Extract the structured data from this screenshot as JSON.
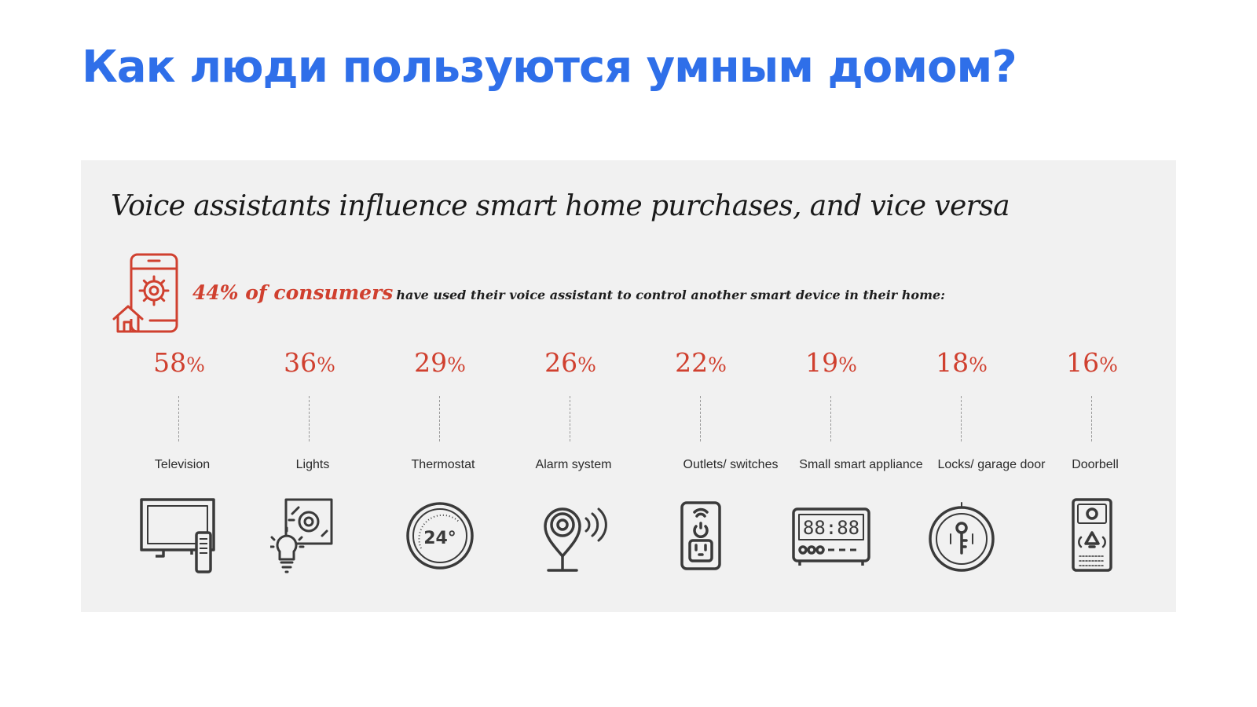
{
  "slide": {
    "title": "Как люди пользуются умным домом?",
    "title_color": "#2f6fe9"
  },
  "infographic": {
    "headline": "Voice assistants influence smart home purchases, and vice versa",
    "stat_highlight": "44% of consumers",
    "stat_text": "have used their voice assistant to control another smart device in their home:",
    "accent_color": "#d0402f",
    "items": [
      {
        "percent": "58",
        "label": "Television",
        "icon": "television-icon"
      },
      {
        "percent": "36",
        "label": "Lights",
        "icon": "light-bulb-icon"
      },
      {
        "percent": "29",
        "label": "Thermostat",
        "icon": "thermostat-icon",
        "icon_text": "24°"
      },
      {
        "percent": "26",
        "label": "Alarm system",
        "icon": "security-camera-icon"
      },
      {
        "percent": "22",
        "label": "Outlets/ switches",
        "icon": "smart-outlet-icon"
      },
      {
        "percent": "19",
        "label": "Small smart appliance",
        "icon": "appliance-display-icon",
        "icon_text": "88:88"
      },
      {
        "percent": "18",
        "label": "Locks/ garage door",
        "icon": "lock-icon"
      },
      {
        "percent": "16",
        "label": "Doorbell",
        "icon": "doorbell-icon"
      }
    ],
    "percent_suffix": "%"
  }
}
